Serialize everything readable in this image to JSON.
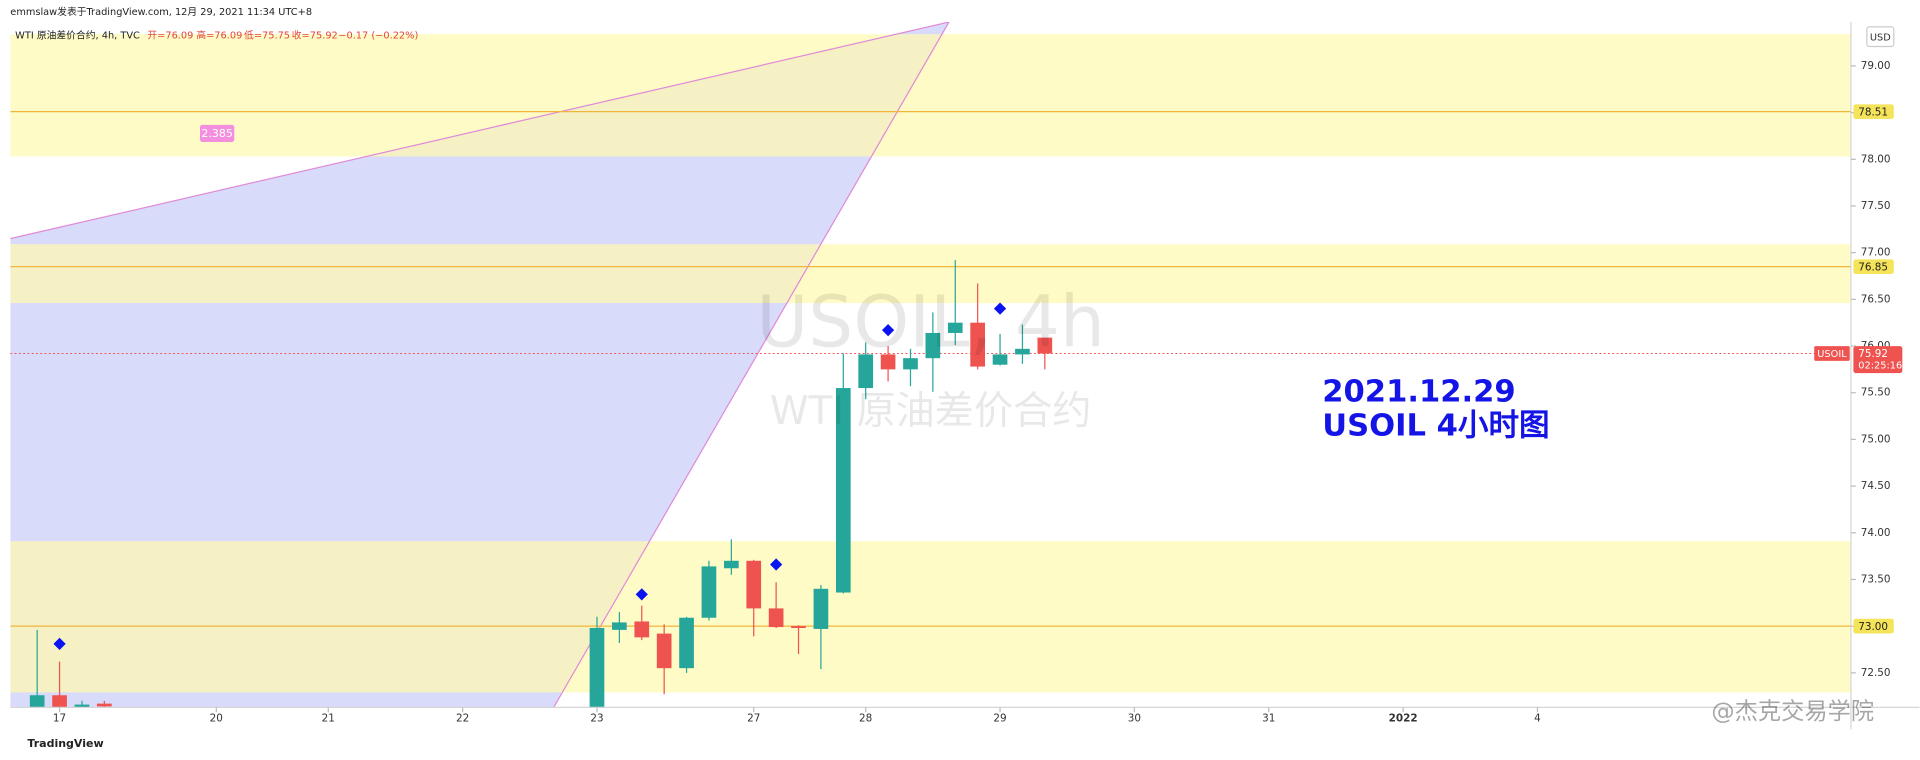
{
  "chart_data": {
    "type": "candlestick",
    "header": "emmslaw发表于TradingView.com, 12月 29, 2021 11:34 UTC+8",
    "legend": {
      "symbol": "WTI 原油差价合约, 4h, TVC",
      "open": "开=76.09",
      "high": "高=76.09",
      "low": "低=75.75",
      "close": "收=75.92",
      "change": "−0.17 (−0.22%)"
    },
    "watermark": {
      "title": "USOIL, 4h",
      "subtitle": "WTI 原油差价合约"
    },
    "annotation": [
      "2021.12.29",
      "USOIL 4小时图"
    ],
    "currency": "USD",
    "fib_label": "2.385",
    "footer": {
      "logo": "TradingView",
      "credit": "@杰克交易学院"
    },
    "x": [
      0,
      1,
      2,
      3,
      25,
      26,
      27,
      28,
      29,
      30,
      31,
      32,
      33,
      34,
      35,
      36,
      37,
      38,
      39,
      40,
      41,
      42,
      43,
      44,
      45
    ],
    "open": [
      72.05,
      72.26,
      72.12,
      72.17,
      71.9,
      72.96,
      73.05,
      72.92,
      72.55,
      73.09,
      73.62,
      73.7,
      73.19,
      73.0,
      72.97,
      73.36,
      75.55,
      75.91,
      75.75,
      75.87,
      76.14,
      76.25,
      75.8,
      75.91,
      76.09
    ],
    "high": [
      72.96,
      72.62,
      72.2,
      72.2,
      73.1,
      73.15,
      73.22,
      73.02,
      73.1,
      73.7,
      73.93,
      73.71,
      73.47,
      73.01,
      73.44,
      75.92,
      76.04,
      76.0,
      75.97,
      76.36,
      76.92,
      76.67,
      76.13,
      76.23,
      76.09
    ],
    "low": [
      71.9,
      72.0,
      72.0,
      72.0,
      71.7,
      72.82,
      72.85,
      72.27,
      72.5,
      73.06,
      73.55,
      72.89,
      72.98,
      72.7,
      72.54,
      73.35,
      75.43,
      75.62,
      75.57,
      75.51,
      76.01,
      75.75,
      75.79,
      75.81,
      75.75
    ],
    "close": [
      72.26,
      72.1,
      72.16,
      72.14,
      72.98,
      73.04,
      72.88,
      72.55,
      73.09,
      73.64,
      73.7,
      73.19,
      72.99,
      72.98,
      73.4,
      75.55,
      75.91,
      75.75,
      75.87,
      76.14,
      76.25,
      75.78,
      75.91,
      75.97,
      75.92
    ],
    "up_color": "#26a69a",
    "down_color": "#ef5350",
    "markers": {
      "x": [
        1,
        27,
        33,
        38,
        43
      ],
      "y": [
        72.81,
        73.34,
        73.66,
        76.17,
        76.4
      ],
      "color": "#0a14f0"
    },
    "zones": [
      [
        78.03,
        79.34
      ],
      [
        76.46,
        77.09
      ],
      [
        72.29,
        73.91
      ]
    ],
    "zone_color": "#fffab0",
    "levels": [
      78.51,
      76.85,
      {
        "value": 73,
        "label": "73.00"
      }
    ],
    "level_color": "#f0b53c",
    "last_price": {
      "label": "USOIL",
      "value": 75.92,
      "countdown": "02:25:16",
      "color": "#ef5350"
    },
    "xlim": [
      -1.2,
      81
    ],
    "xticks": [
      {
        "value": 1,
        "label": "17"
      },
      {
        "value": 8,
        "label": "20"
      },
      {
        "value": 13,
        "label": "21"
      },
      {
        "value": 19,
        "label": "22"
      },
      {
        "value": 25,
        "label": "23"
      },
      {
        "value": 32,
        "label": "27"
      },
      {
        "value": 37,
        "label": "28"
      },
      {
        "value": 43,
        "label": "29"
      },
      {
        "value": 49,
        "label": "30"
      },
      {
        "value": 55,
        "label": "31"
      },
      {
        "value": 61,
        "label": "2022"
      },
      {
        "value": 67,
        "label": "4"
      }
    ],
    "ylim": [
      72.13,
      79.47
    ],
    "yticks": [
      {
        "value": 72.5,
        "label": "72.50"
      },
      {
        "value": 73,
        "label": "73.00"
      },
      {
        "value": 73.5,
        "label": "73.50"
      },
      {
        "value": 74,
        "label": "74.00"
      },
      {
        "value": 74.5,
        "label": "74.50"
      },
      {
        "value": 75,
        "label": "75.00"
      },
      {
        "value": 75.5,
        "label": "75.50"
      },
      {
        "value": 76,
        "label": "76.00"
      },
      {
        "value": 76.5,
        "label": "76.50"
      },
      {
        "value": 77,
        "label": "77.00"
      },
      {
        "value": 77.5,
        "label": "77.50"
      },
      {
        "value": 78,
        "label": "78.00"
      },
      {
        "value": 78.5,
        "label": "78.50"
      },
      {
        "value": 79,
        "label": "79.00"
      }
    ]
  }
}
